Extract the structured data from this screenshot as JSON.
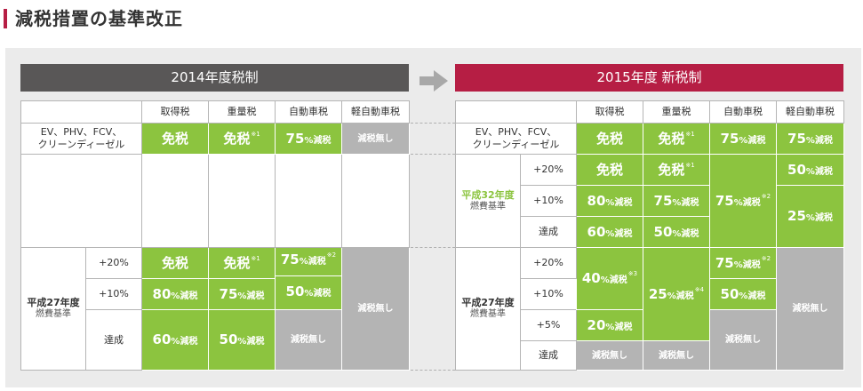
{
  "title": {
    "text": "減税措置の基準改正"
  },
  "colors": {
    "accent": "#b61e44",
    "green": "#8cc43f",
    "gray": "#b4b4b4",
    "dark": "#595757"
  },
  "headers": {
    "old": "2014年度税制",
    "new": "2015年度 新税制"
  },
  "columns": [
    "取得税",
    "重量税",
    "自動車税",
    "軽自動車税"
  ],
  "vehicles": {
    "line1": "EV、PHV、FCV、",
    "line2": "クリーンディーゼル"
  },
  "levels": {
    "p20": "+20%",
    "p10": "+10%",
    "p5": "+5%",
    "achieve": "達成"
  },
  "standards": {
    "h27": {
      "line1": "平成27年度",
      "line2": "燃費基準"
    },
    "h32": {
      "line1": "平成32年度",
      "line2": "燃費基準"
    }
  },
  "values": {
    "exempt": "免税",
    "none": "減税無し",
    "pct": "%減税",
    "n75": "75",
    "n80": "80",
    "n60": "60",
    "n50": "50",
    "n40": "40",
    "n25": "25",
    "n20": "20"
  },
  "notes": {
    "n1": "※1",
    "n2": "※2",
    "n3": "※3",
    "n4": "※4"
  }
}
